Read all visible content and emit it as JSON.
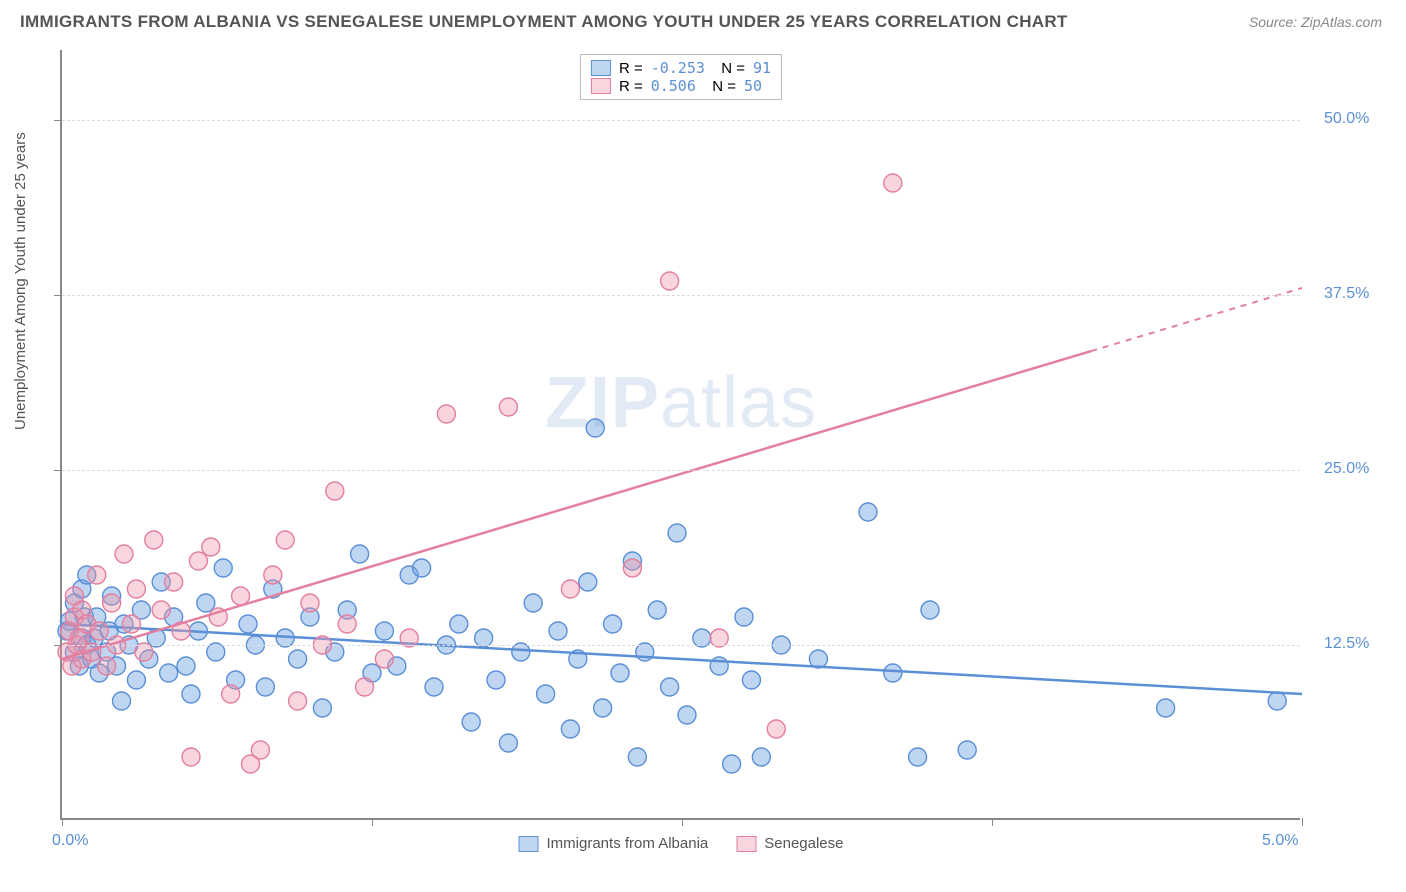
{
  "title": "IMMIGRANTS FROM ALBANIA VS SENEGALESE UNEMPLOYMENT AMONG YOUTH UNDER 25 YEARS CORRELATION CHART",
  "source": "Source: ZipAtlas.com",
  "ylabel": "Unemployment Among Youth under 25 years",
  "watermark_a": "ZIP",
  "watermark_b": "atlas",
  "chart": {
    "type": "scatter",
    "xlim": [
      0,
      5.0
    ],
    "ylim": [
      0,
      55
    ],
    "xticks": [
      0,
      1.25,
      2.5,
      3.75,
      5.0
    ],
    "xtick_labels": {
      "0": "0.0%",
      "5": "5.0%"
    },
    "yticks": [
      12.5,
      25.0,
      37.5,
      50.0
    ],
    "ytick_labels": [
      "12.5%",
      "25.0%",
      "37.5%",
      "50.0%"
    ],
    "grid_color": "#dddddd",
    "background_color": "#ffffff",
    "axis_color": "#888888",
    "series": [
      {
        "name": "Immigrants from Albania",
        "color_fill": "rgba(110,165,225,0.45)",
        "color_stroke": "#5b8fd6",
        "marker_radius": 9,
        "R": "-0.253",
        "N": "91",
        "regression": {
          "x1": 0,
          "y1": 14.0,
          "x2": 5.0,
          "y2": 9.0,
          "dash_after_x": 5.0
        },
        "points": [
          [
            0.02,
            13.5
          ],
          [
            0.03,
            14.2
          ],
          [
            0.05,
            12.0
          ],
          [
            0.05,
            15.5
          ],
          [
            0.07,
            11.0
          ],
          [
            0.08,
            16.5
          ],
          [
            0.08,
            13.0
          ],
          [
            0.09,
            14.5
          ],
          [
            0.1,
            12.5
          ],
          [
            0.1,
            17.5
          ],
          [
            0.12,
            11.5
          ],
          [
            0.13,
            13.0
          ],
          [
            0.14,
            14.5
          ],
          [
            0.15,
            10.5
          ],
          [
            0.18,
            12.0
          ],
          [
            0.19,
            13.5
          ],
          [
            0.2,
            16.0
          ],
          [
            0.22,
            11.0
          ],
          [
            0.24,
            8.5
          ],
          [
            0.25,
            14.0
          ],
          [
            0.27,
            12.5
          ],
          [
            0.3,
            10.0
          ],
          [
            0.32,
            15.0
          ],
          [
            0.35,
            11.5
          ],
          [
            0.38,
            13.0
          ],
          [
            0.4,
            17.0
          ],
          [
            0.43,
            10.5
          ],
          [
            0.45,
            14.5
          ],
          [
            0.5,
            11.0
          ],
          [
            0.52,
            9.0
          ],
          [
            0.55,
            13.5
          ],
          [
            0.58,
            15.5
          ],
          [
            0.62,
            12.0
          ],
          [
            0.65,
            18.0
          ],
          [
            0.7,
            10.0
          ],
          [
            0.75,
            14.0
          ],
          [
            0.78,
            12.5
          ],
          [
            0.82,
            9.5
          ],
          [
            0.85,
            16.5
          ],
          [
            0.9,
            13.0
          ],
          [
            0.95,
            11.5
          ],
          [
            1.0,
            14.5
          ],
          [
            1.05,
            8.0
          ],
          [
            1.1,
            12.0
          ],
          [
            1.15,
            15.0
          ],
          [
            1.2,
            19.0
          ],
          [
            1.25,
            10.5
          ],
          [
            1.3,
            13.5
          ],
          [
            1.35,
            11.0
          ],
          [
            1.4,
            17.5
          ],
          [
            1.45,
            18.0
          ],
          [
            1.5,
            9.5
          ],
          [
            1.55,
            12.5
          ],
          [
            1.6,
            14.0
          ],
          [
            1.65,
            7.0
          ],
          [
            1.7,
            13.0
          ],
          [
            1.75,
            10.0
          ],
          [
            1.8,
            5.5
          ],
          [
            1.85,
            12.0
          ],
          [
            1.9,
            15.5
          ],
          [
            1.95,
            9.0
          ],
          [
            2.0,
            13.5
          ],
          [
            2.05,
            6.5
          ],
          [
            2.08,
            11.5
          ],
          [
            2.12,
            17.0
          ],
          [
            2.15,
            28.0
          ],
          [
            2.18,
            8.0
          ],
          [
            2.22,
            14.0
          ],
          [
            2.25,
            10.5
          ],
          [
            2.3,
            18.5
          ],
          [
            2.32,
            4.5
          ],
          [
            2.35,
            12.0
          ],
          [
            2.4,
            15.0
          ],
          [
            2.45,
            9.5
          ],
          [
            2.48,
            20.5
          ],
          [
            2.52,
            7.5
          ],
          [
            2.58,
            13.0
          ],
          [
            2.65,
            11.0
          ],
          [
            2.7,
            4.0
          ],
          [
            2.75,
            14.5
          ],
          [
            2.78,
            10.0
          ],
          [
            2.82,
            4.5
          ],
          [
            2.9,
            12.5
          ],
          [
            3.05,
            11.5
          ],
          [
            3.25,
            22.0
          ],
          [
            3.35,
            10.5
          ],
          [
            3.45,
            4.5
          ],
          [
            3.5,
            15.0
          ],
          [
            3.65,
            5.0
          ],
          [
            4.45,
            8.0
          ],
          [
            4.9,
            8.5
          ]
        ]
      },
      {
        "name": "Senegalese",
        "color_fill": "rgba(240,150,170,0.40)",
        "color_stroke": "#e37fa0",
        "marker_radius": 9,
        "R": "0.506",
        "N": "50",
        "regression": {
          "x1": 0,
          "y1": 11.5,
          "x2": 5.0,
          "y2": 38.0,
          "dash_after_x": 4.15
        },
        "points": [
          [
            0.02,
            12.0
          ],
          [
            0.03,
            13.5
          ],
          [
            0.04,
            11.0
          ],
          [
            0.05,
            14.5
          ],
          [
            0.05,
            16.0
          ],
          [
            0.06,
            12.5
          ],
          [
            0.07,
            13.0
          ],
          [
            0.08,
            15.0
          ],
          [
            0.08,
            11.5
          ],
          [
            0.1,
            14.0
          ],
          [
            0.12,
            12.0
          ],
          [
            0.14,
            17.5
          ],
          [
            0.15,
            13.5
          ],
          [
            0.18,
            11.0
          ],
          [
            0.2,
            15.5
          ],
          [
            0.22,
            12.5
          ],
          [
            0.25,
            19.0
          ],
          [
            0.28,
            14.0
          ],
          [
            0.3,
            16.5
          ],
          [
            0.33,
            12.0
          ],
          [
            0.37,
            20.0
          ],
          [
            0.4,
            15.0
          ],
          [
            0.45,
            17.0
          ],
          [
            0.48,
            13.5
          ],
          [
            0.52,
            4.5
          ],
          [
            0.55,
            18.5
          ],
          [
            0.6,
            19.5
          ],
          [
            0.63,
            14.5
          ],
          [
            0.68,
            9.0
          ],
          [
            0.72,
            16.0
          ],
          [
            0.76,
            4.0
          ],
          [
            0.8,
            5.0
          ],
          [
            0.85,
            17.5
          ],
          [
            0.9,
            20.0
          ],
          [
            0.95,
            8.5
          ],
          [
            1.0,
            15.5
          ],
          [
            1.05,
            12.5
          ],
          [
            1.1,
            23.5
          ],
          [
            1.15,
            14.0
          ],
          [
            1.22,
            9.5
          ],
          [
            1.3,
            11.5
          ],
          [
            1.4,
            13.0
          ],
          [
            1.55,
            29.0
          ],
          [
            1.8,
            29.5
          ],
          [
            2.3,
            18.0
          ],
          [
            2.45,
            38.5
          ],
          [
            2.65,
            13.0
          ],
          [
            2.88,
            6.5
          ],
          [
            3.35,
            45.5
          ],
          [
            2.05,
            16.5
          ]
        ]
      }
    ]
  },
  "legend_bottom": [
    {
      "label": "Immigrants from Albania",
      "fill": "rgba(110,165,225,0.45)",
      "stroke": "#5b8fd6"
    },
    {
      "label": "Senegalese",
      "fill": "rgba(240,150,170,0.40)",
      "stroke": "#e37fa0"
    }
  ]
}
